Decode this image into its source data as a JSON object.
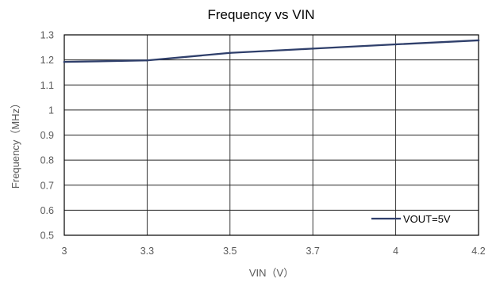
{
  "chart_data": {
    "type": "line",
    "title": "Frequency vs VIN",
    "xlabel": "VIN（V）",
    "ylabel": "Frequency（MHz）",
    "x_ticks": [
      "3",
      "3.3",
      "3.5",
      "3.7",
      "4",
      "4.2"
    ],
    "y_ticks": [
      "0.5",
      "0.6",
      "0.7",
      "0.8",
      "0.9",
      "1",
      "1.1",
      "1.2",
      "1.3"
    ],
    "ylim": [
      0.5,
      1.3
    ],
    "grid": true,
    "legend_position": "bottom-right",
    "series": [
      {
        "name": "VOUT=5V",
        "color": "#2F3F6B",
        "values": [
          1.192,
          1.198,
          1.228,
          1.245,
          1.262,
          1.278
        ]
      }
    ]
  }
}
